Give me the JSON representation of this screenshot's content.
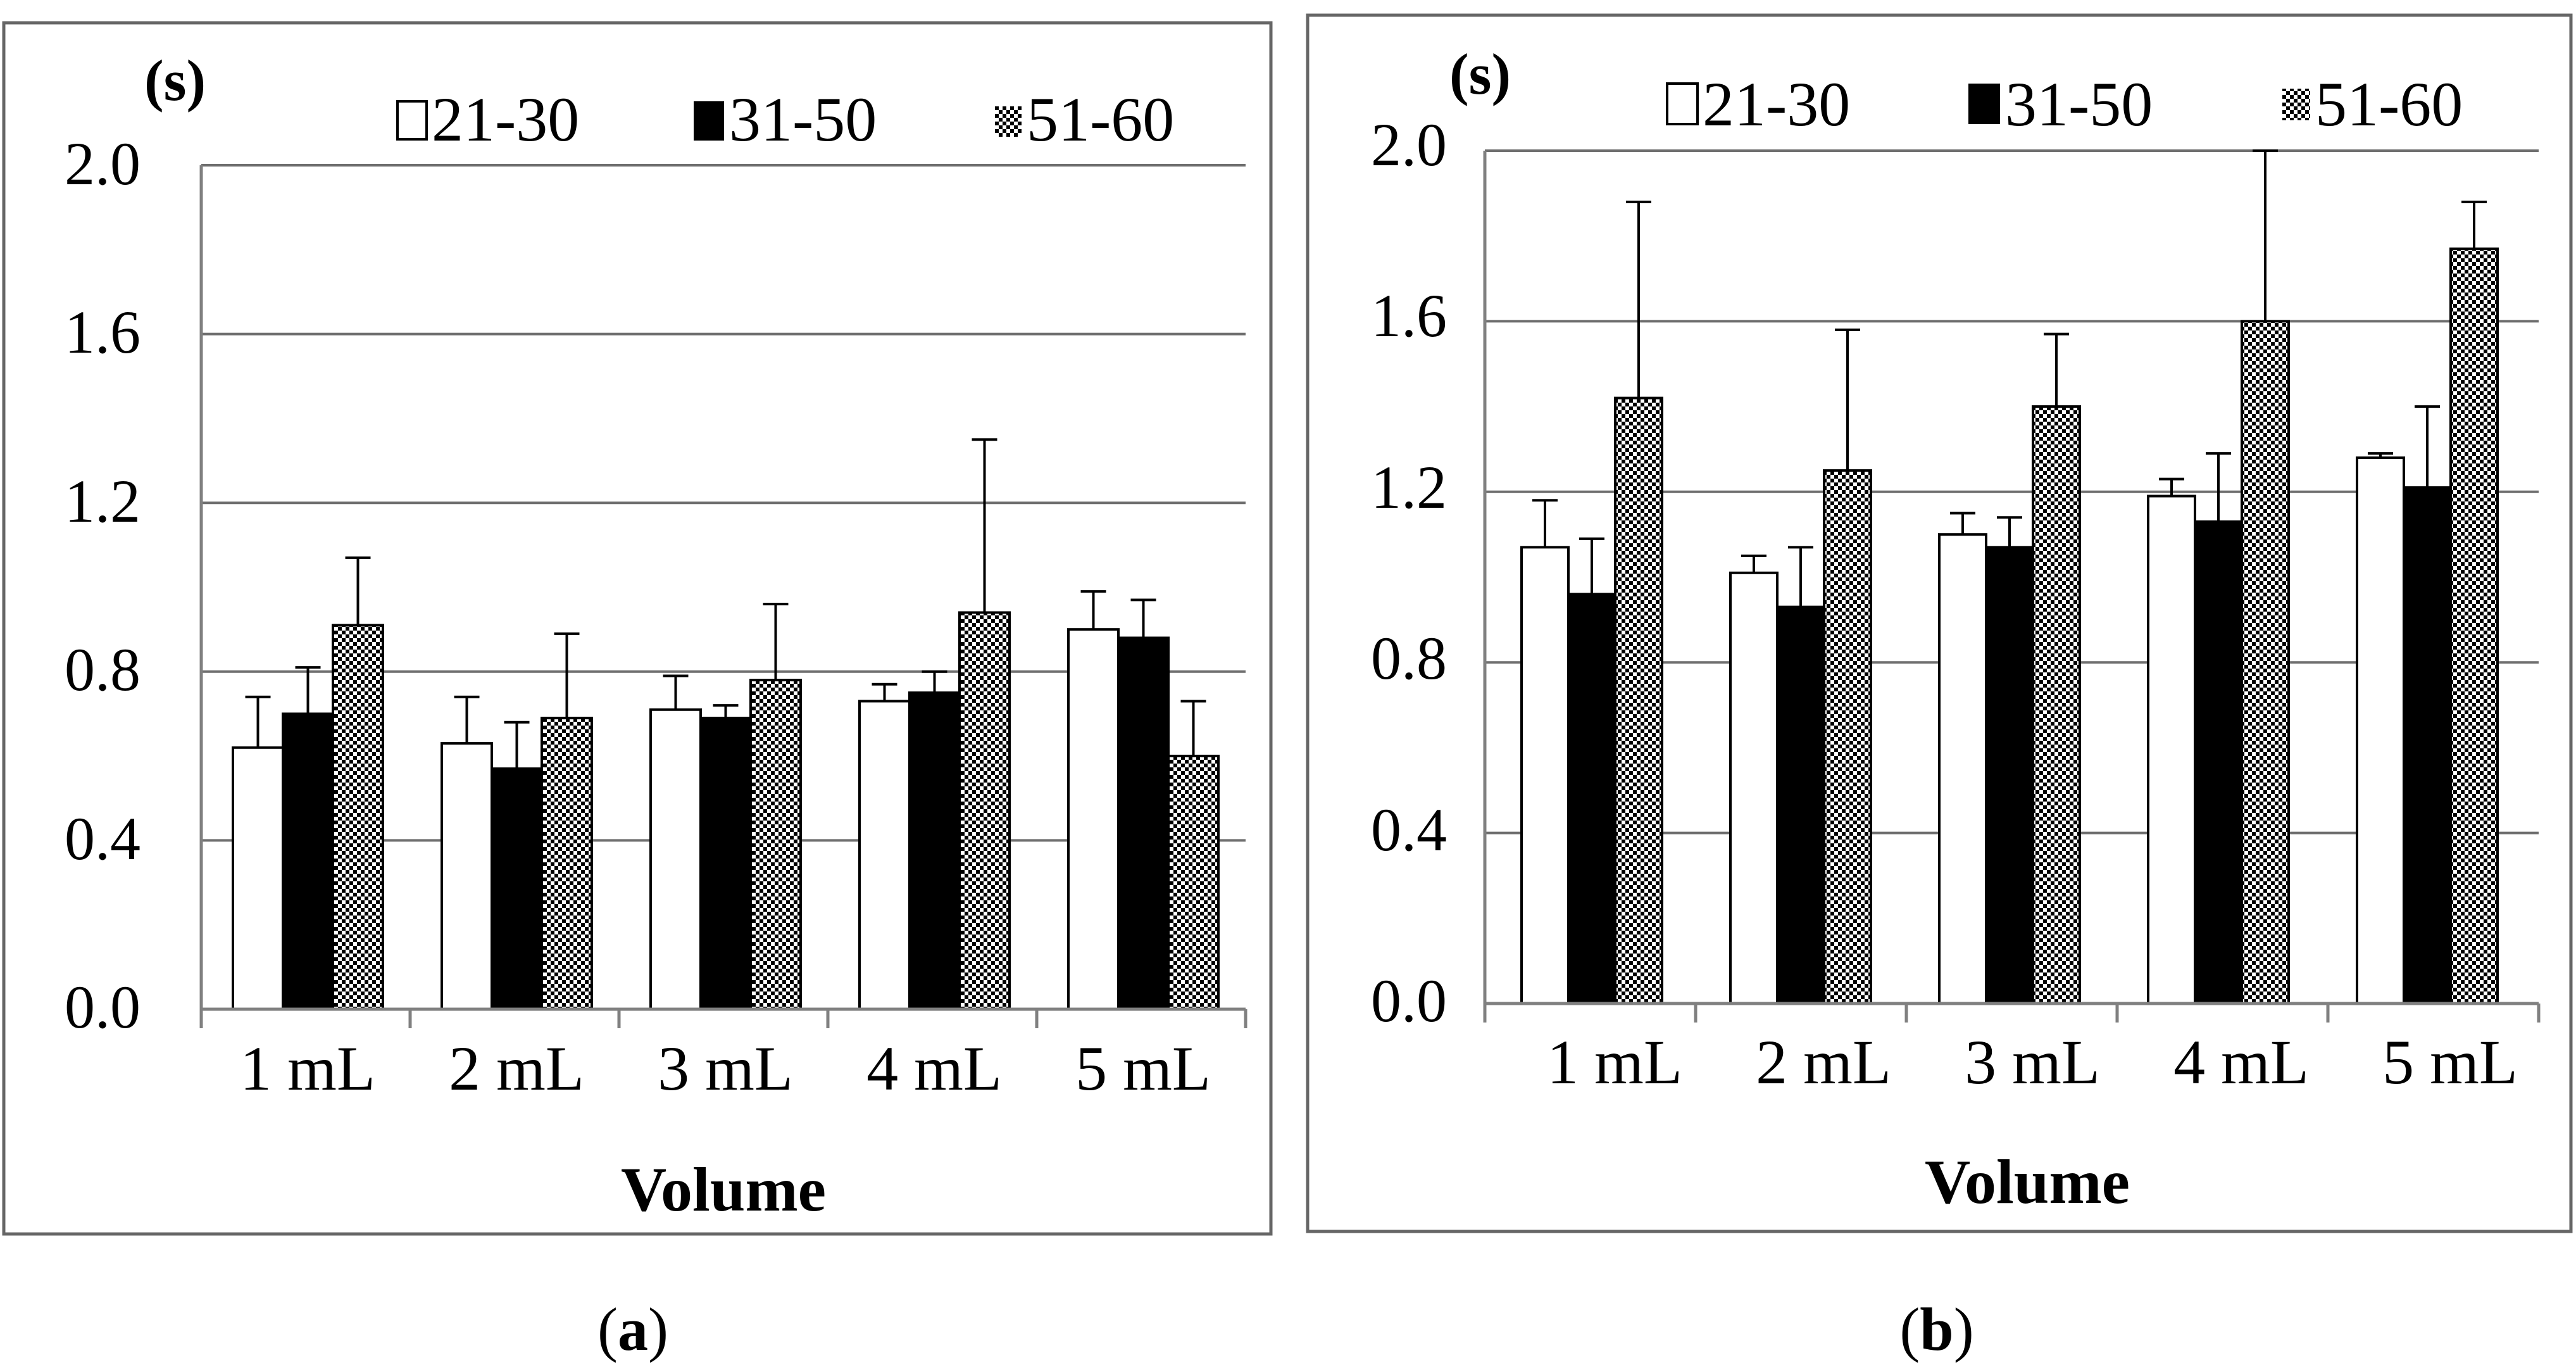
{
  "colors": {
    "frame": "#666666",
    "grid": "#6e6e6e",
    "axis": "#808080",
    "bar_stroke": "#000000",
    "black": "#000000",
    "white": "#ffffff"
  },
  "chart_data": [
    {
      "type": "bar",
      "panel_label": "a",
      "unit_label": "(s)",
      "xlabel": "Volume",
      "ylabel": "(s)",
      "ylim": [
        0,
        2.0
      ],
      "yticks": [
        "0.0",
        "0.4",
        "0.8",
        "1.2",
        "1.6",
        "2.0"
      ],
      "grid": true,
      "legend_position": "top",
      "categories": [
        "1 mL",
        "2 mL",
        "3 mL",
        "4 mL",
        "5 mL"
      ],
      "series": [
        {
          "name": "21-30",
          "fill": "white",
          "values": [
            0.62,
            0.63,
            0.71,
            0.73,
            0.9
          ],
          "errors": [
            0.12,
            0.11,
            0.08,
            0.04,
            0.09
          ]
        },
        {
          "name": "31-50",
          "fill": "black",
          "values": [
            0.7,
            0.57,
            0.69,
            0.75,
            0.88
          ],
          "errors": [
            0.11,
            0.11,
            0.03,
            0.05,
            0.09
          ]
        },
        {
          "name": "51-60",
          "fill": "checker",
          "values": [
            0.91,
            0.69,
            0.78,
            0.94,
            0.6
          ],
          "errors": [
            0.16,
            0.2,
            0.18,
            0.41,
            0.13
          ]
        }
      ]
    },
    {
      "type": "bar",
      "panel_label": "b",
      "unit_label": "(s)",
      "xlabel": "Volume",
      "ylabel": "(s)",
      "ylim": [
        0,
        2.0
      ],
      "yticks": [
        "0.0",
        "0.4",
        "0.8",
        "1.2",
        "1.6",
        "2.0"
      ],
      "grid": true,
      "legend_position": "top",
      "categories": [
        "1 mL",
        "2 mL",
        "3 mL",
        "4 mL",
        "5 mL"
      ],
      "series": [
        {
          "name": "21-30",
          "fill": "white",
          "values": [
            1.07,
            1.01,
            1.1,
            1.19,
            1.28
          ],
          "errors": [
            0.11,
            0.04,
            0.05,
            0.04,
            0.01
          ]
        },
        {
          "name": "31-50",
          "fill": "black",
          "values": [
            0.96,
            0.93,
            1.07,
            1.13,
            1.21
          ],
          "errors": [
            0.13,
            0.14,
            0.07,
            0.16,
            0.19
          ]
        },
        {
          "name": "51-60",
          "fill": "checker",
          "values": [
            1.42,
            1.25,
            1.4,
            1.6,
            1.77
          ],
          "errors": [
            0.46,
            0.33,
            0.17,
            0.4,
            0.11
          ]
        }
      ]
    }
  ]
}
